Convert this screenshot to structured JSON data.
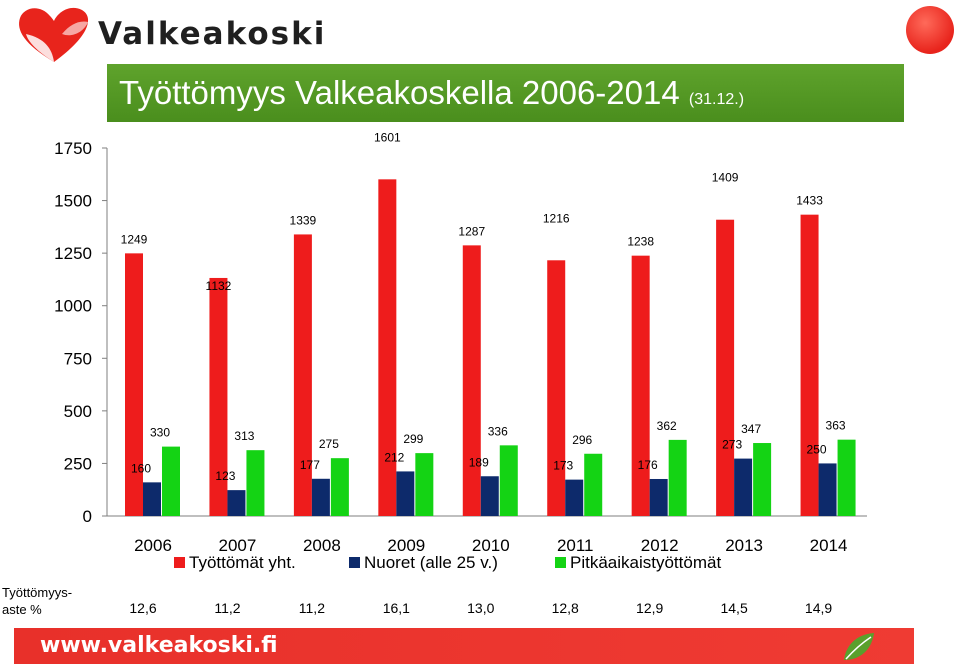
{
  "brand": {
    "name": "Valkeakoski",
    "website": "www.valkeakoski.fi"
  },
  "title": {
    "main": "Työttömyys Valkeakoskella 2006-2014",
    "note": "(31.12.)"
  },
  "colors": {
    "total": "#ee1c1c",
    "youth": "#0d2a6b",
    "longterm": "#14d314",
    "title_bg": "#54992a",
    "footer_bg": "#e8302a"
  },
  "chart_data": {
    "type": "bar",
    "categories": [
      "2006",
      "2007",
      "2008",
      "2009",
      "2010",
      "2011",
      "2012",
      "2013",
      "2014"
    ],
    "series": [
      {
        "name": "Työttömät yht.",
        "values": [
          1249,
          1132,
          1339,
          1601,
          1287,
          1216,
          1238,
          1409,
          1433
        ]
      },
      {
        "name": "Nuoret (alle 25 v.)",
        "values": [
          160,
          123,
          177,
          212,
          189,
          173,
          176,
          273,
          250
        ]
      },
      {
        "name": "Pitkäaikaistyöttömät",
        "values": [
          330,
          313,
          275,
          299,
          336,
          296,
          362,
          347,
          363
        ]
      }
    ],
    "y_ticks": [
      "0",
      "250",
      "500",
      "750",
      "1000",
      "1250",
      "1500",
      "1750"
    ],
    "ylim": [
      0,
      1750
    ],
    "grid": false,
    "legend": "bottom"
  },
  "rate": {
    "label_line1": "Työttömyys-",
    "label_line2": "aste %",
    "values": [
      "12,6",
      "11,2",
      "11,2",
      "16,1",
      "13,0",
      "12,8",
      "12,9",
      "14,5",
      "14,9"
    ]
  }
}
